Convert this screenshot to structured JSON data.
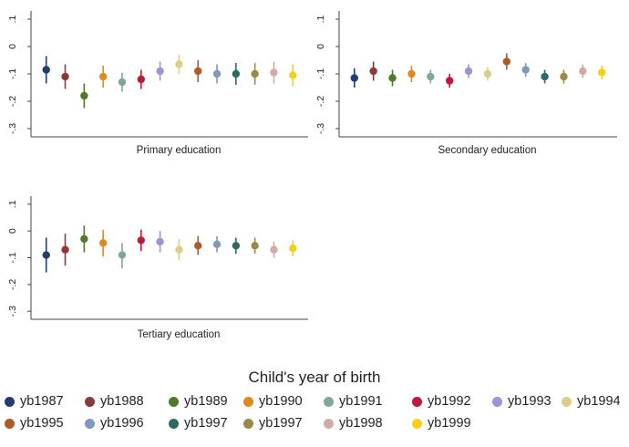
{
  "chart_data": {
    "type": "scatter",
    "subtype": "coefficient plot with confidence intervals",
    "yticks": [
      "-.3",
      "-.2",
      "-.1",
      "0",
      ".1"
    ],
    "ylim": [
      -0.33,
      0.13
    ],
    "series": [
      {
        "name": "yb1987",
        "color": "#1f3c73"
      },
      {
        "name": "yb1988",
        "color": "#8b3a3a"
      },
      {
        "name": "yb1989",
        "color": "#4f7a2c"
      },
      {
        "name": "yb1990",
        "color": "#e08a1e"
      },
      {
        "name": "yb1991",
        "color": "#7fa899"
      },
      {
        "name": "yb1992",
        "color": "#c0183c"
      },
      {
        "name": "yb1993",
        "color": "#9c94d4"
      },
      {
        "name": "yb1994",
        "color": "#d8cf8e"
      },
      {
        "name": "yb1995",
        "color": "#b05a2a"
      },
      {
        "name": "yb1996",
        "color": "#7f9ab8"
      },
      {
        "name": "yb1997",
        "color": "#2b6b63"
      },
      {
        "name": "yb1997",
        "color": "#9a8a4a"
      },
      {
        "name": "yb1998",
        "color": "#d0aca3"
      },
      {
        "name": "yb1999",
        "color": "#f2d01c"
      }
    ],
    "panels": [
      {
        "title": "Primary education",
        "estimates": [
          -0.085,
          -0.11,
          -0.18,
          -0.11,
          -0.13,
          -0.12,
          -0.09,
          -0.065,
          -0.09,
          -0.1,
          -0.1,
          -0.1,
          -0.095,
          -0.105
        ],
        "lower": [
          -0.135,
          -0.155,
          -0.225,
          -0.15,
          -0.165,
          -0.155,
          -0.125,
          -0.1,
          -0.13,
          -0.135,
          -0.14,
          -0.14,
          -0.135,
          -0.145
        ],
        "upper": [
          -0.035,
          -0.065,
          -0.135,
          -0.07,
          -0.095,
          -0.085,
          -0.055,
          -0.03,
          -0.05,
          -0.065,
          -0.06,
          -0.06,
          -0.055,
          -0.065
        ]
      },
      {
        "title": "Secondary education",
        "estimates": [
          -0.115,
          -0.09,
          -0.115,
          -0.1,
          -0.11,
          -0.125,
          -0.09,
          -0.1,
          -0.055,
          -0.085,
          -0.11,
          -0.11,
          -0.09,
          -0.095
        ],
        "lower": [
          -0.15,
          -0.125,
          -0.145,
          -0.13,
          -0.135,
          -0.15,
          -0.115,
          -0.125,
          -0.085,
          -0.11,
          -0.135,
          -0.135,
          -0.115,
          -0.12
        ],
        "upper": [
          -0.08,
          -0.055,
          -0.085,
          -0.07,
          -0.085,
          -0.1,
          -0.065,
          -0.075,
          -0.025,
          -0.06,
          -0.085,
          -0.085,
          -0.065,
          -0.07
        ]
      },
      {
        "title": "Tertiary education",
        "estimates": [
          -0.09,
          -0.07,
          -0.03,
          -0.045,
          -0.09,
          -0.035,
          -0.04,
          -0.07,
          -0.055,
          -0.05,
          -0.055,
          -0.055,
          -0.07,
          -0.065
        ],
        "lower": [
          -0.155,
          -0.13,
          -0.08,
          -0.095,
          -0.14,
          -0.075,
          -0.08,
          -0.11,
          -0.09,
          -0.08,
          -0.085,
          -0.085,
          -0.1,
          -0.095
        ],
        "upper": [
          -0.025,
          -0.01,
          0.02,
          0.005,
          -0.045,
          0.005,
          0.0,
          -0.03,
          -0.02,
          -0.02,
          -0.025,
          -0.025,
          -0.04,
          -0.035
        ]
      }
    ],
    "legend_title": "Child's year of birth",
    "legend_position": "bottom"
  }
}
